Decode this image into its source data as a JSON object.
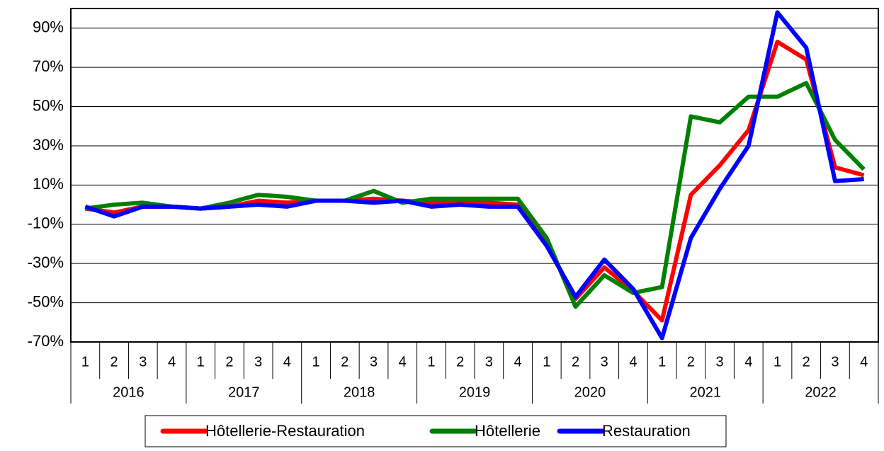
{
  "chart_data": {
    "type": "line",
    "categories": [
      "1",
      "2",
      "3",
      "4",
      "1",
      "2",
      "3",
      "4",
      "1",
      "2",
      "3",
      "4",
      "1",
      "2",
      "3",
      "4",
      "1",
      "2",
      "3",
      "4",
      "1",
      "2",
      "3",
      "4",
      "1",
      "2",
      "3",
      "4"
    ],
    "years": [
      "2016",
      "2017",
      "2018",
      "2019",
      "2020",
      "2021",
      "2022"
    ],
    "series": [
      {
        "name": "Hôtellerie-Restauration",
        "color": "#ff0000",
        "values": [
          -2,
          -4,
          -1,
          -1,
          -2,
          -1,
          2,
          1,
          2,
          2,
          3,
          2,
          1,
          1,
          1,
          0,
          -20,
          -48,
          -32,
          -44,
          -59,
          5,
          20,
          38,
          83,
          74,
          19,
          15
        ]
      },
      {
        "name": "Hôtellerie",
        "color": "#008000",
        "values": [
          -2,
          0,
          1,
          -1,
          -2,
          1,
          5,
          4,
          2,
          2,
          7,
          1,
          3,
          3,
          3,
          3,
          -17,
          -52,
          -36,
          -45,
          -42,
          45,
          42,
          55,
          55,
          62,
          33,
          18
        ]
      },
      {
        "name": "Restauration",
        "color": "#0000ff",
        "values": [
          -1,
          -6,
          -1,
          -1,
          -2,
          -1,
          0,
          -1,
          2,
          2,
          1,
          2,
          -1,
          0,
          -1,
          -1,
          -21,
          -47,
          -28,
          -43,
          -68,
          -17,
          8,
          30,
          98,
          80,
          12,
          13
        ]
      }
    ],
    "ylim": [
      -70,
      100
    ],
    "yticks": [
      {
        "value": -70,
        "label": "-70%"
      },
      {
        "value": -50,
        "label": "-50%"
      },
      {
        "value": -30,
        "label": "-30%"
      },
      {
        "value": -10,
        "label": "-10%"
      },
      {
        "value": 10,
        "label": "10%"
      },
      {
        "value": 30,
        "label": "30%"
      },
      {
        "value": 50,
        "label": "50%"
      },
      {
        "value": 70,
        "label": "70%"
      },
      {
        "value": 90,
        "label": "90%"
      }
    ],
    "grid": true,
    "legend": "bottom"
  }
}
